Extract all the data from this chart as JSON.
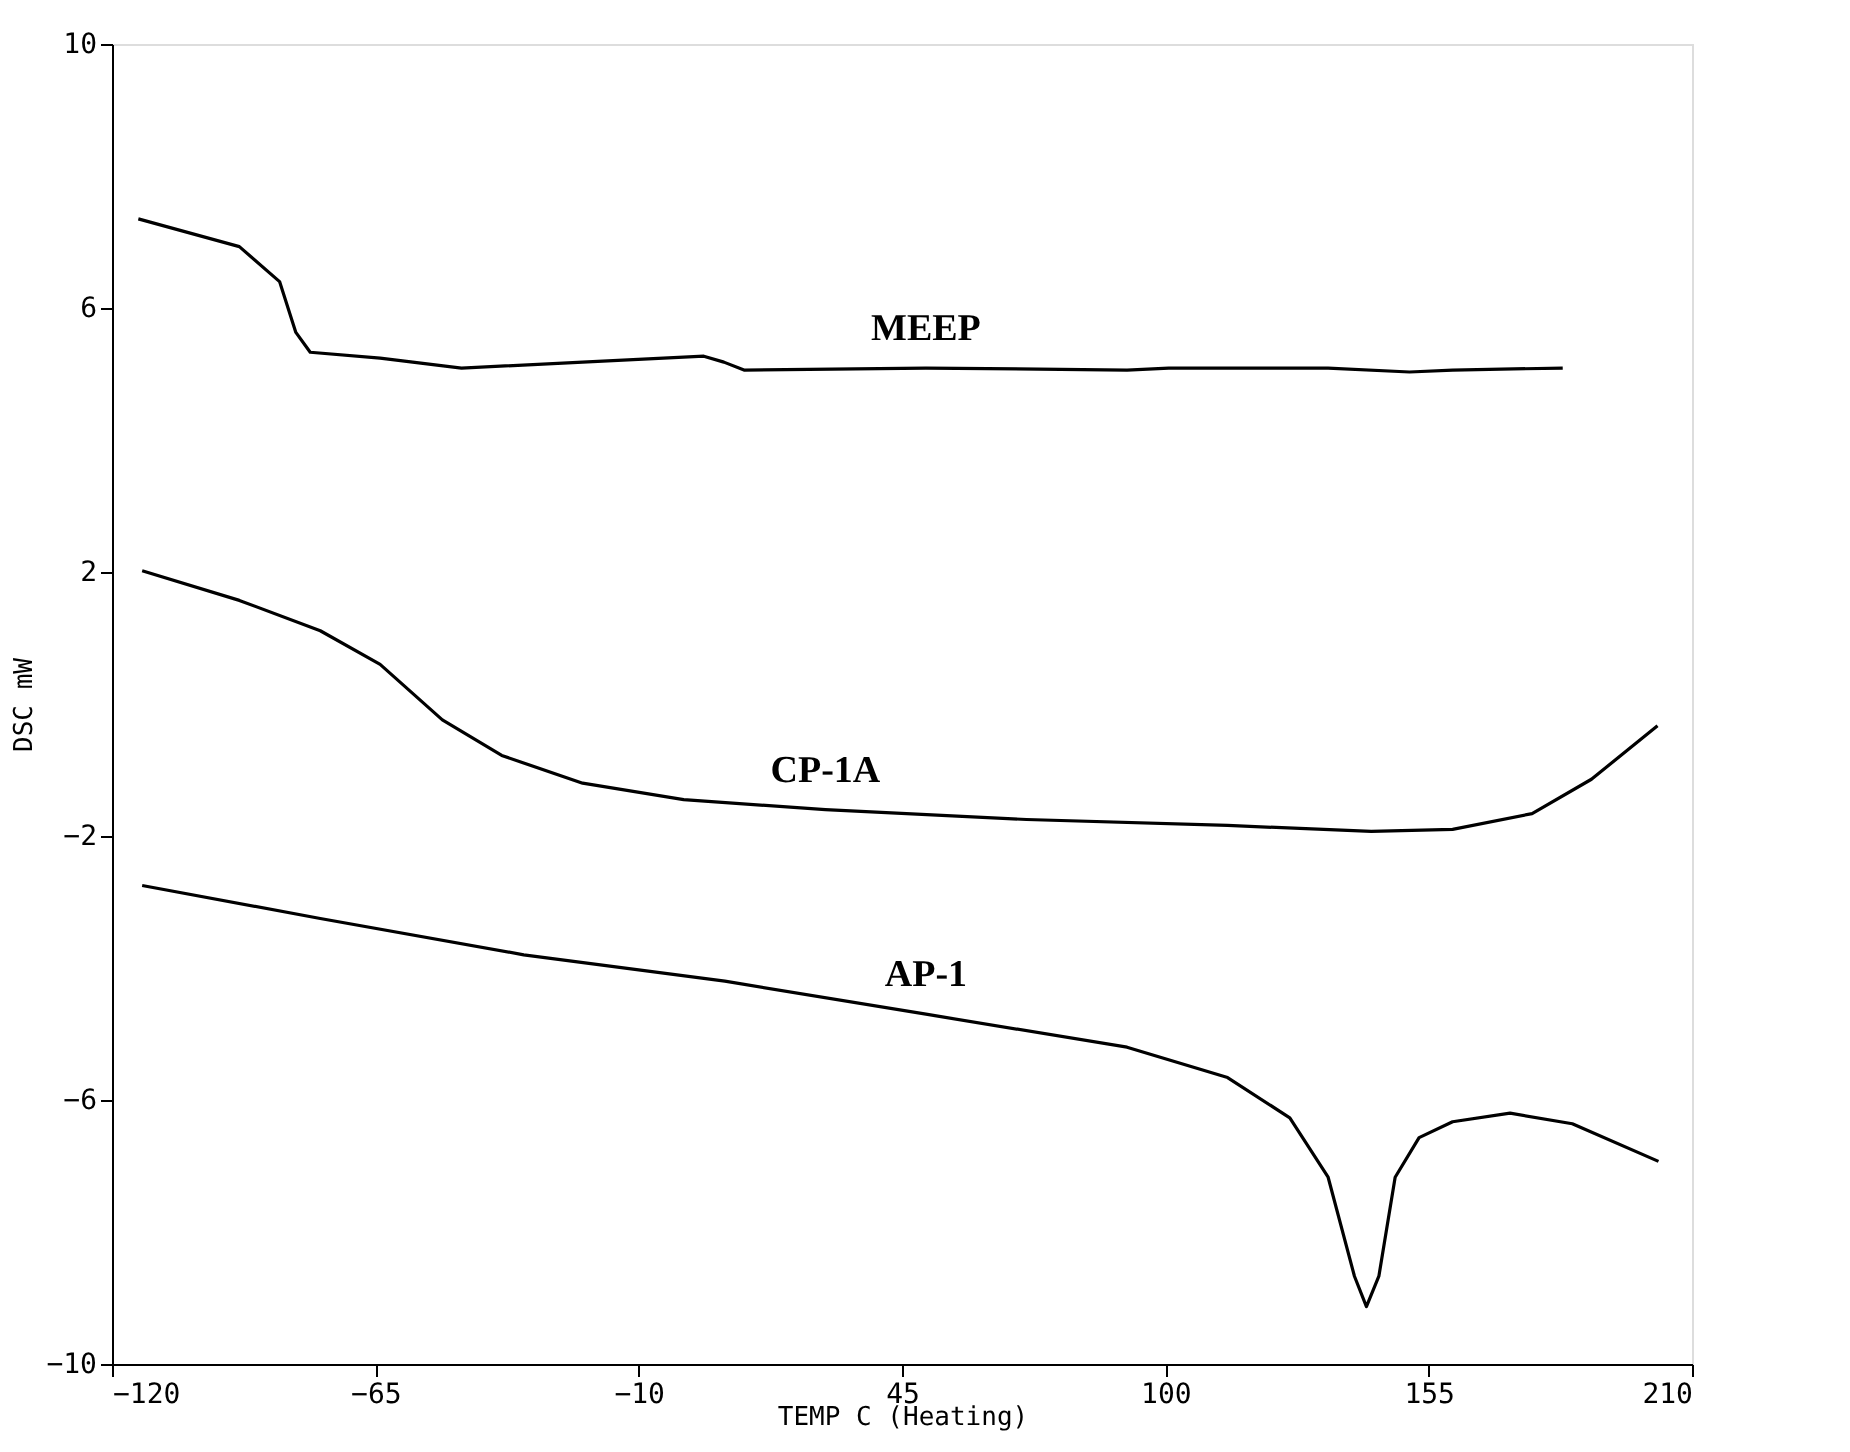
{
  "chart_data": {
    "type": "line",
    "xlabel": "TEMP C   (Heating)",
    "ylabel": "DSC mW",
    "xlim": [
      -120,
      210
    ],
    "xticks": [
      -120,
      -65,
      -10,
      45,
      100,
      155,
      210
    ],
    "ylim": [
      -10,
      10
    ],
    "yticks": [
      -10,
      -6,
      -2,
      2,
      6,
      10
    ],
    "marker": "none",
    "line_style": "solid",
    "series": [
      {
        "name": "MEEP",
        "color": "#000000",
        "x": [
          -114.5,
          -93.4,
          -85,
          -81.6,
          -78.6,
          -64,
          -47,
          -21.7,
          3.6,
          7.8,
          12,
          50,
          92,
          100.7,
          134,
          151,
          160,
          183
        ],
        "values": [
          7.35,
          6.93,
          6.4,
          5.63,
          5.33,
          5.24,
          5.09,
          5.18,
          5.27,
          5.18,
          5.06,
          5.09,
          5.06,
          5.09,
          5.09,
          5.03,
          5.06,
          5.09
        ]
      },
      {
        "name": "CP-1A",
        "color": "#000000",
        "x": [
          -113.7,
          -93.4,
          -76.5,
          -64,
          -51,
          -38.6,
          -21.7,
          -0.6,
          29,
          71,
          113,
          143,
          160,
          176.6,
          189,
          202.8
        ],
        "values": [
          2.02,
          1.57,
          1.11,
          0.6,
          -0.24,
          -0.78,
          -1.2,
          -1.45,
          -1.6,
          -1.75,
          -1.84,
          -1.93,
          -1.9,
          -1.66,
          -1.14,
          -0.33
        ]
      },
      {
        "name": "AP-1",
        "color": "#000000",
        "x": [
          -113.7,
          -76.5,
          -34,
          8,
          50,
          92,
          113,
          126,
          134,
          139.5,
          142,
          144.6,
          148,
          153,
          160,
          172,
          185,
          203
        ],
        "values": [
          -2.75,
          -3.25,
          -3.8,
          -4.2,
          -4.7,
          -5.2,
          -5.66,
          -6.27,
          -7.17,
          -8.67,
          -9.13,
          -8.67,
          -7.17,
          -6.57,
          -6.33,
          -6.2,
          -6.36,
          -6.93
        ]
      }
    ]
  }
}
